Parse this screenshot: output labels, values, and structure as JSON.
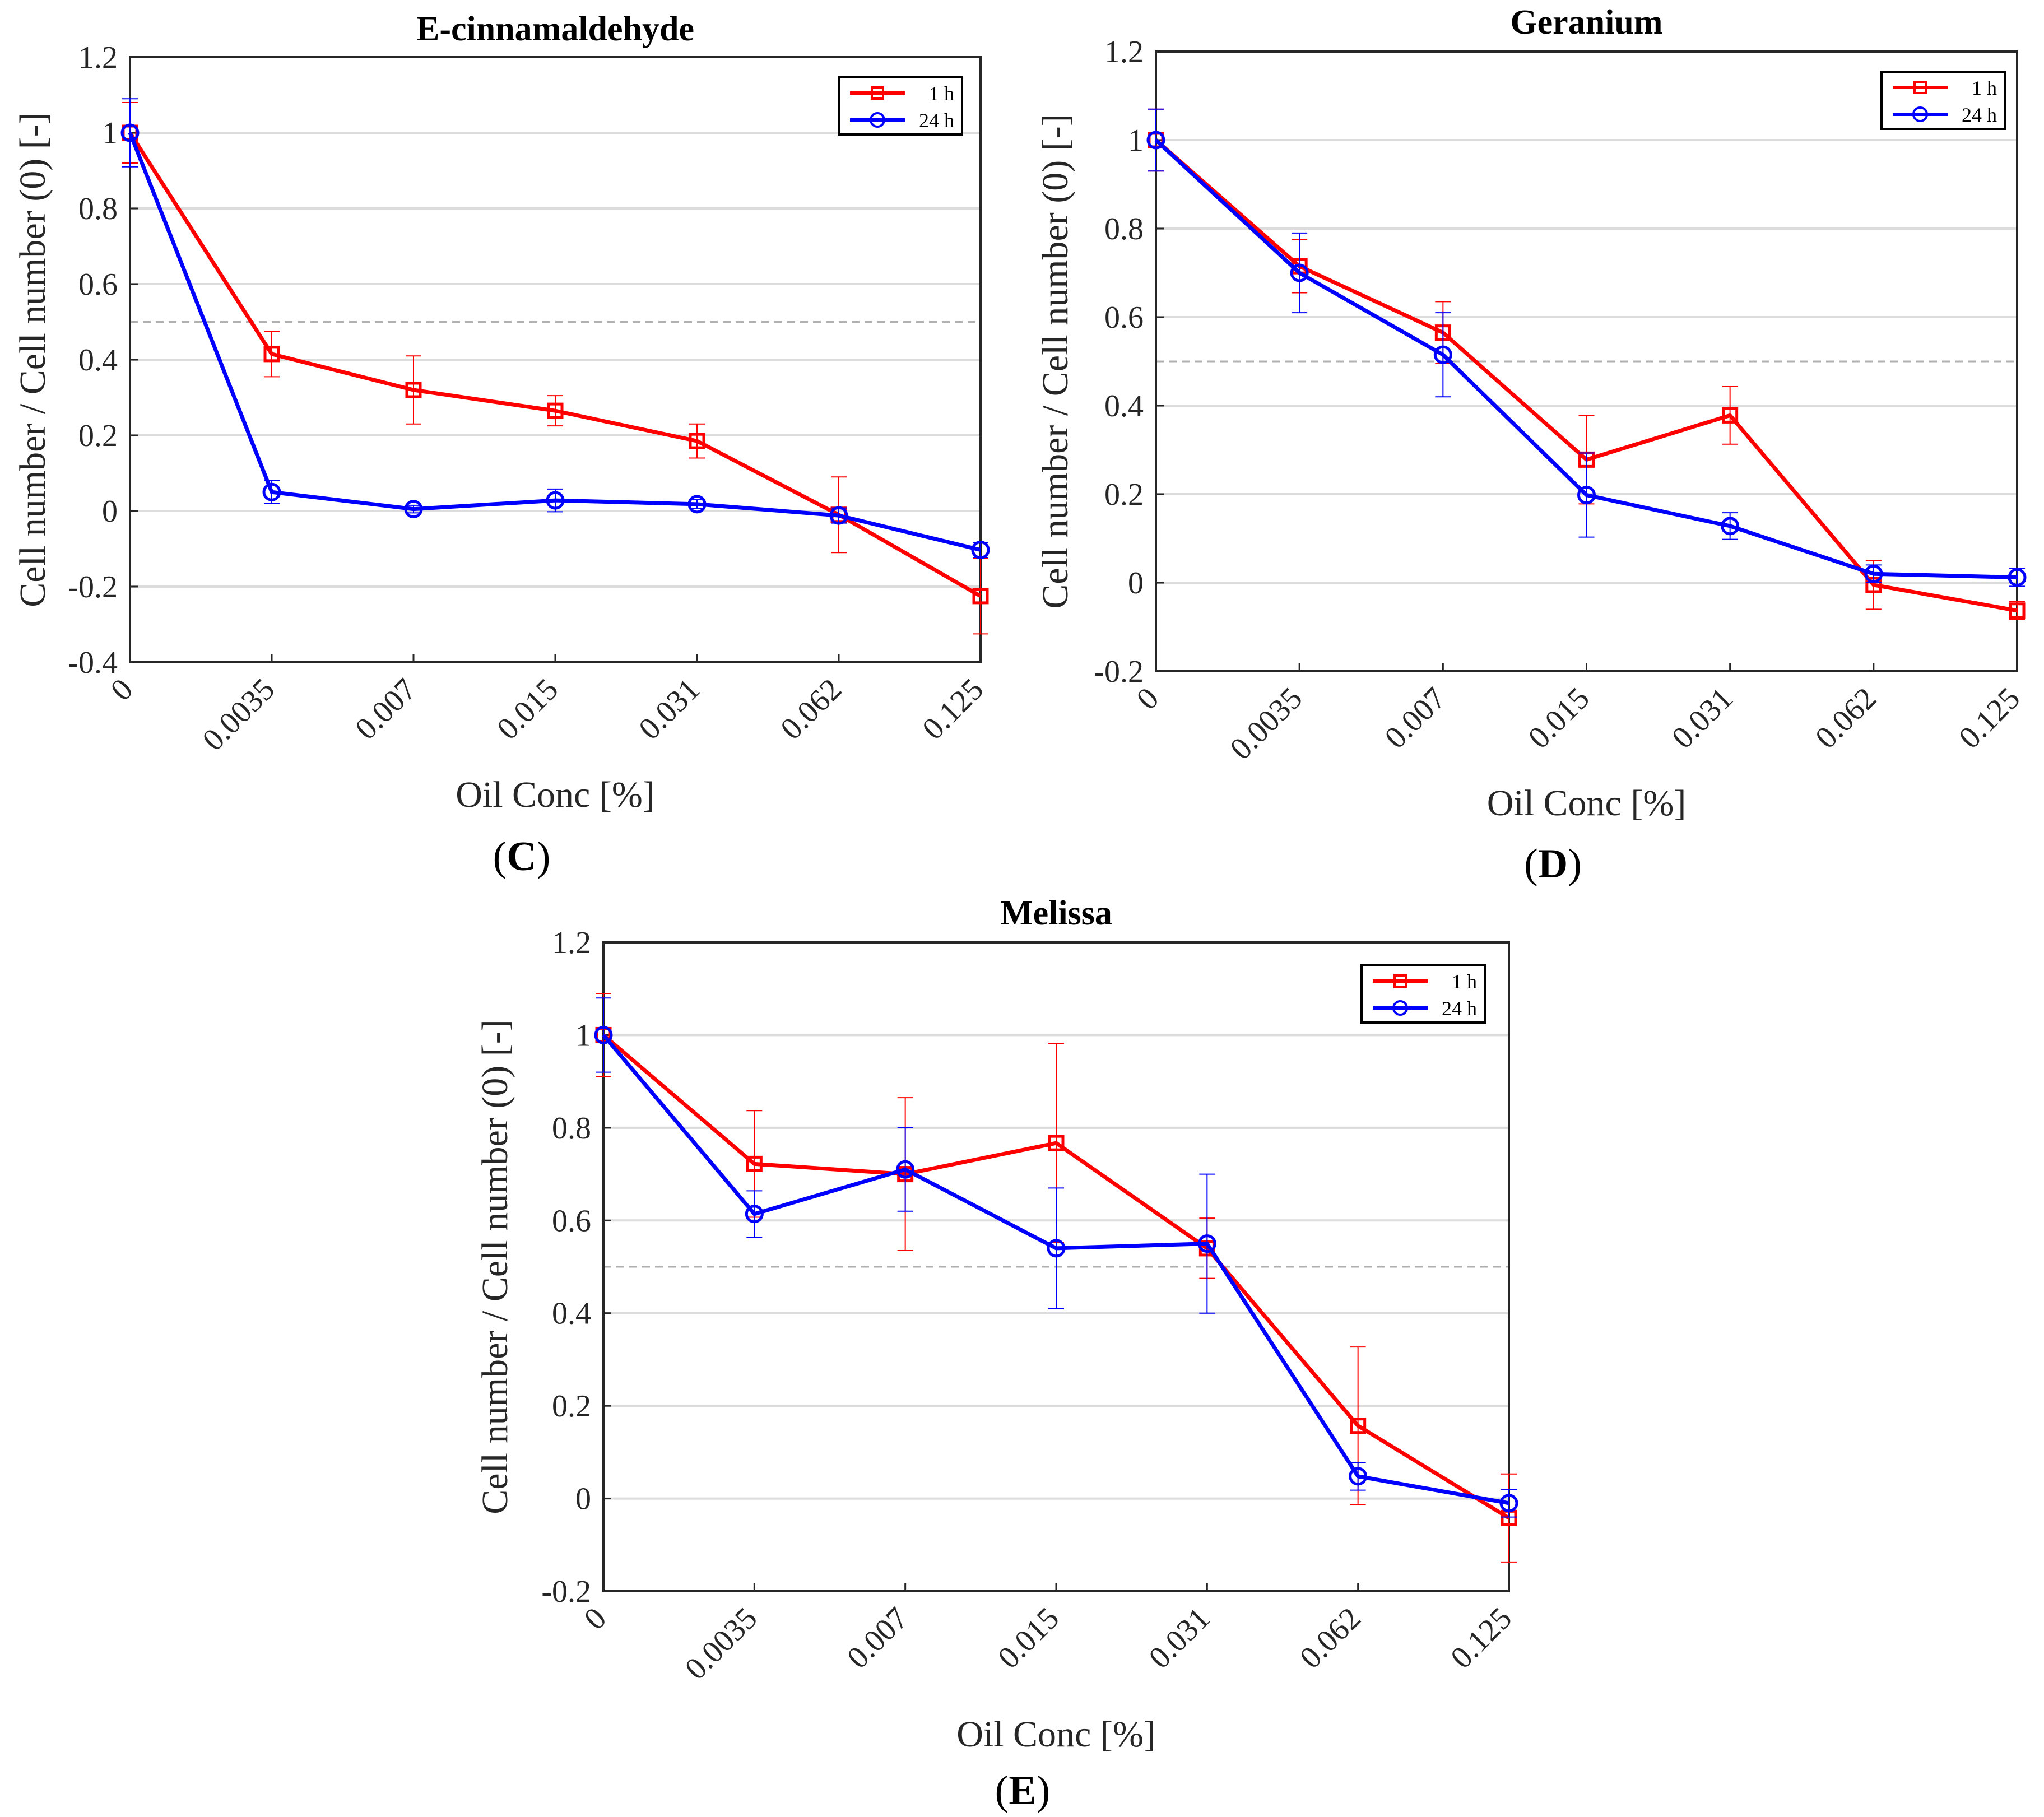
{
  "colors": {
    "h1": "#ff0000",
    "h24": "#0000ff",
    "ref": "#b0b0b0",
    "grid": "#dcdcdc",
    "axis": "#262626"
  },
  "chart_data": [
    {
      "type": "line",
      "panel": "(C)",
      "panel_letter": "C",
      "title": "E-cinnamaldehyde",
      "xlabel": "Oil Conc [%]",
      "ylabel": "Cell number / Cell number (0) [-]",
      "categories": [
        "0",
        "0.0035",
        "0.007",
        "0.015",
        "0.031",
        "0.062",
        "0.125"
      ],
      "ylim": [
        -0.4,
        1.2
      ],
      "yticks": [
        -0.4,
        -0.2,
        0,
        0.2,
        0.4,
        0.6,
        0.8,
        1,
        1.2
      ],
      "ytick_labels": [
        "-0.4",
        "-0.2",
        "0",
        "0.2",
        "0.4",
        "0.6",
        "0.8",
        "1",
        "1.2"
      ],
      "reference_line": 0.5,
      "grid": true,
      "legend_position": "top-right",
      "series": [
        {
          "name": "1 h",
          "marker": "square",
          "color": "#ff0000",
          "values": [
            1.0,
            0.415,
            0.32,
            0.265,
            0.185,
            -0.01,
            -0.225
          ],
          "errors": [
            0.08,
            0.06,
            0.09,
            0.04,
            0.045,
            0.1,
            0.1
          ]
        },
        {
          "name": "24 h",
          "marker": "circle",
          "color": "#0000ff",
          "values": [
            1.0,
            0.05,
            0.005,
            0.028,
            0.018,
            -0.012,
            -0.103
          ],
          "errors": [
            0.09,
            0.03,
            0.01,
            0.03,
            0.012,
            0.02,
            0.02
          ]
        }
      ]
    },
    {
      "type": "line",
      "panel": "(D)",
      "panel_letter": "D",
      "title": "Geranium",
      "xlabel": "Oil Conc [%]",
      "ylabel": "Cell number / Cell number (0) [-]",
      "categories": [
        "0",
        "0.0035",
        "0.007",
        "0.015",
        "0.031",
        "0.062",
        "0.125"
      ],
      "ylim": [
        -0.2,
        1.2
      ],
      "yticks": [
        -0.2,
        0,
        0.2,
        0.4,
        0.6,
        0.8,
        1,
        1.2
      ],
      "ytick_labels": [
        "-0.2",
        "0",
        "0.2",
        "0.4",
        "0.6",
        "0.8",
        "1",
        "1.2"
      ],
      "reference_line": 0.5,
      "grid": true,
      "legend_position": "top-right",
      "series": [
        {
          "name": "1 h",
          "marker": "square",
          "color": "#ff0000",
          "values": [
            1.0,
            0.715,
            0.565,
            0.278,
            0.378,
            -0.005,
            -0.063
          ],
          "errors": [
            0.07,
            0.06,
            0.07,
            0.1,
            0.065,
            0.055,
            0.02
          ]
        },
        {
          "name": "24 h",
          "marker": "circle",
          "color": "#0000ff",
          "values": [
            1.0,
            0.7,
            0.515,
            0.198,
            0.128,
            0.02,
            0.012
          ],
          "errors": [
            0.07,
            0.09,
            0.095,
            0.095,
            0.03,
            0.02,
            0.02
          ]
        }
      ]
    },
    {
      "type": "line",
      "panel": "(E)",
      "panel_letter": "E",
      "title": "Melissa",
      "xlabel": "Oil Conc [%]",
      "ylabel": "Cell number / Cell number (0) [-]",
      "categories": [
        "0",
        "0.0035",
        "0.007",
        "0.015",
        "0.031",
        "0.062",
        "0.125"
      ],
      "ylim": [
        -0.2,
        1.2
      ],
      "yticks": [
        -0.2,
        0,
        0.2,
        0.4,
        0.6,
        0.8,
        1,
        1.2
      ],
      "ytick_labels": [
        "-0.2",
        "0",
        "0.2",
        "0.4",
        "0.6",
        "0.8",
        "1",
        "1.2"
      ],
      "reference_line": 0.5,
      "grid": true,
      "legend_position": "top-right",
      "series": [
        {
          "name": "1 h",
          "marker": "square",
          "color": "#ff0000",
          "values": [
            1.0,
            0.722,
            0.7,
            0.767,
            0.54,
            0.157,
            -0.042
          ],
          "errors": [
            0.09,
            0.115,
            0.165,
            0.215,
            0.065,
            0.17,
            0.095
          ]
        },
        {
          "name": "24 h",
          "marker": "circle",
          "color": "#0000ff",
          "values": [
            1.0,
            0.614,
            0.71,
            0.54,
            0.55,
            0.048,
            -0.01
          ],
          "errors": [
            0.08,
            0.05,
            0.09,
            0.13,
            0.15,
            0.03,
            0.03
          ]
        }
      ]
    }
  ]
}
